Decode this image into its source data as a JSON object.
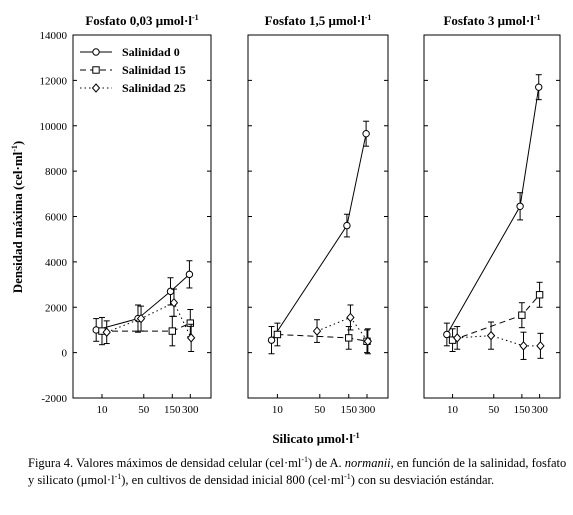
{
  "chart_data": {
    "type": "line",
    "ylabel": "Densidad máxima (cel·ml",
    "ylabel_sup": "-1",
    "ylabel_end": ")",
    "xlabel": "Silicato μmol·l",
    "xlabel_sup": "-1",
    "ylim": [
      -2000,
      14000
    ],
    "yticks": [
      -2000,
      0,
      2000,
      4000,
      6000,
      8000,
      10000,
      12000,
      14000
    ],
    "ytick_labels": [
      "-2000",
      "0",
      "2000",
      "4000",
      "6000",
      "8000",
      "10000",
      "12000",
      "14000"
    ],
    "xtick_values": [
      10,
      50,
      150,
      300
    ],
    "xtick_labels": [
      "10",
      "50",
      "150",
      "300"
    ],
    "legend": {
      "position": "top-left of first panel",
      "entries": [
        "Salinidad 0",
        "Salinidad 15",
        "Salinidad 25"
      ]
    },
    "panels": [
      {
        "title": "Fosfato 0,03 μmol·l",
        "title_sup": "-1",
        "series": [
          {
            "name": "Salinidad 0",
            "marker": "circle",
            "line": "solid",
            "points": [
              {
                "x": 8,
                "y": 1000,
                "err": 500
              },
              {
                "x": 40,
                "y": 1500,
                "err": 600
              },
              {
                "x": 140,
                "y": 2700,
                "err": 600
              },
              {
                "x": 290,
                "y": 3450,
                "err": 600
              }
            ]
          },
          {
            "name": "Salinidad 15",
            "marker": "square",
            "line": "dashed",
            "points": [
              {
                "x": 10,
                "y": 950,
                "err": 600
              },
              {
                "x": 150,
                "y": 950,
                "err": 650
              },
              {
                "x": 300,
                "y": 1300,
                "err": 600
              }
            ]
          },
          {
            "name": "Salinidad 25",
            "marker": "diamond",
            "line": "dotted",
            "points": [
              {
                "x": 12,
                "y": 900,
                "err": 500
              },
              {
                "x": 45,
                "y": 1500,
                "err": 550
              },
              {
                "x": 160,
                "y": 2200,
                "err": 600
              },
              {
                "x": 310,
                "y": 650,
                "err": 600
              }
            ]
          }
        ]
      },
      {
        "title": "Fosfato 1,5 μmol·l",
        "title_sup": "-1",
        "series": [
          {
            "name": "Salinidad 0",
            "marker": "circle",
            "line": "solid",
            "points": [
              {
                "x": 8,
                "y": 550,
                "err": 600
              },
              {
                "x": 140,
                "y": 5600,
                "err": 500
              },
              {
                "x": 290,
                "y": 9650,
                "err": 550
              }
            ]
          },
          {
            "name": "Salinidad 15",
            "marker": "square",
            "line": "dashed",
            "points": [
              {
                "x": 10,
                "y": 800,
                "err": 500
              },
              {
                "x": 150,
                "y": 650,
                "err": 500
              },
              {
                "x": 300,
                "y": 500,
                "err": 500
              }
            ]
          },
          {
            "name": "Salinidad 25",
            "marker": "diamond",
            "line": "dotted",
            "points": [
              {
                "x": 45,
                "y": 950,
                "err": 500
              },
              {
                "x": 160,
                "y": 1550,
                "err": 550
              },
              {
                "x": 310,
                "y": 500,
                "err": 550
              }
            ]
          }
        ]
      },
      {
        "title": "Fosfato 3 μmol·l",
        "title_sup": "-1",
        "series": [
          {
            "name": "Salinidad 0",
            "marker": "circle",
            "line": "solid",
            "points": [
              {
                "x": 8,
                "y": 800,
                "err": 500
              },
              {
                "x": 140,
                "y": 6450,
                "err": 600
              },
              {
                "x": 290,
                "y": 11700,
                "err": 550
              }
            ]
          },
          {
            "name": "Salinidad 15",
            "marker": "square",
            "line": "dashed",
            "points": [
              {
                "x": 10,
                "y": 550,
                "err": 500
              },
              {
                "x": 150,
                "y": 1650,
                "err": 550
              },
              {
                "x": 300,
                "y": 2550,
                "err": 550
              }
            ]
          },
          {
            "name": "Salinidad 25",
            "marker": "diamond",
            "line": "dotted",
            "points": [
              {
                "x": 12,
                "y": 650,
                "err": 500
              },
              {
                "x": 45,
                "y": 750,
                "err": 600
              },
              {
                "x": 160,
                "y": 300,
                "err": 600
              },
              {
                "x": 310,
                "y": 300,
                "err": 550
              }
            ]
          }
        ]
      }
    ]
  },
  "caption": {
    "part1": "Figura 4. Valores máximos de densidad celular (cel·ml",
    "sup1": "-1",
    "part2": ") de A. ",
    "italic": "normanii",
    "part3": ", en función de la salinidad,  fosfato y silicato (μmol·l",
    "sup2": "-1",
    "part4": "), en cultivos de densidad inicial 800 (cel·ml",
    "sup3": "-1",
    "part5": ") con su desviación estándar."
  }
}
